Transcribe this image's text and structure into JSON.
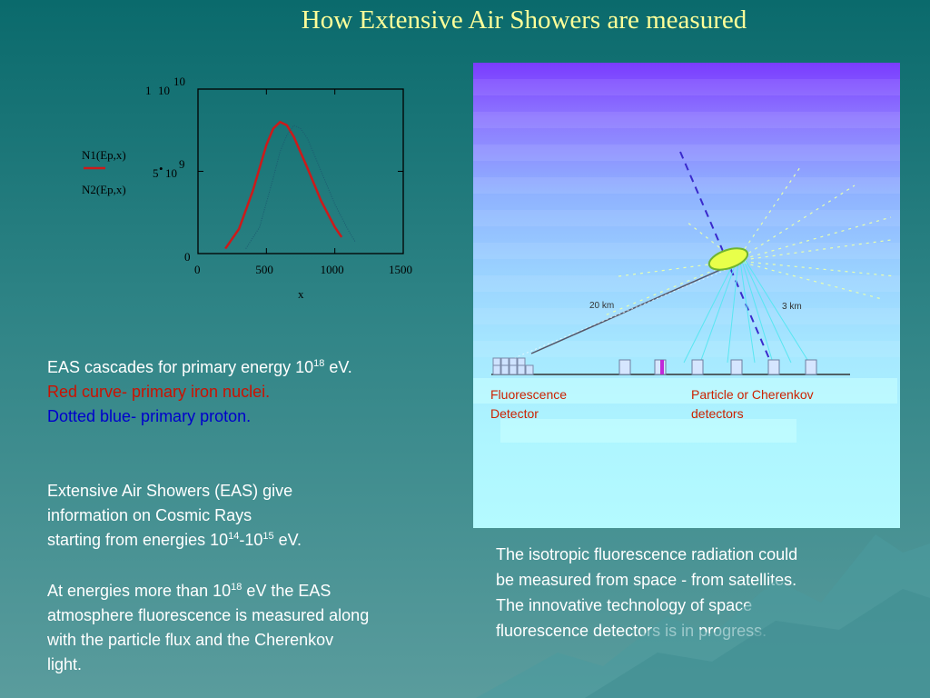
{
  "title": "How Extensive Air Showers are measured",
  "chart_data": {
    "type": "line",
    "xlabel": "x",
    "ylabel": "",
    "xlim": [
      0,
      1500
    ],
    "ylim": [
      0,
      10000000000.0
    ],
    "x_ticks": [
      "0",
      "500",
      "1000",
      "1500"
    ],
    "y_tick_top": {
      "mantissa": "1",
      "base": "10",
      "exp": "10"
    },
    "y_tick_mid": {
      "mantissa": "5",
      "base": "10",
      "exp": "9"
    },
    "y_tick_zero": "0",
    "legend": [
      "N1(Ep,x)",
      "N2(Ep,x)"
    ],
    "series": [
      {
        "name": "N1(Ep,x)",
        "color": "#cc1a1a",
        "style": "solid",
        "x": [
          200,
          300,
          400,
          500,
          550,
          600,
          650,
          700,
          800,
          900,
          1000,
          1050
        ],
        "y": [
          300000000.0,
          1500000000.0,
          3800000000.0,
          6600000000.0,
          7600000000.0,
          8000000000.0,
          7800000000.0,
          7100000000.0,
          5200000000.0,
          3200000000.0,
          1600000000.0,
          1000000000.0
        ]
      },
      {
        "name": "N2(Ep,x)",
        "color": "#1c5a70",
        "style": "dotted",
        "x": [
          350,
          450,
          550,
          600,
          650,
          700,
          750,
          800,
          900,
          1000,
          1100,
          1150
        ],
        "y": [
          300000000.0,
          1600000000.0,
          4600000000.0,
          6200000000.0,
          7200000000.0,
          7800000000.0,
          7600000000.0,
          7000000000.0,
          5000000000.0,
          3000000000.0,
          1400000000.0,
          700000000.0
        ]
      }
    ]
  },
  "left_text": {
    "p1_a": "EAS cascades for primary energy 10",
    "p1_sup": "18",
    "p1_b": " eV.",
    "p1_red": "Red curve- primary iron nuclei.",
    "p1_blue": "Dotted blue- primary proton.",
    "p2_l1": "Extensive Air Showers (EAS) give",
    "p2_l2": "information on Cosmic Rays",
    "p2_l3a": "starting from energies 10",
    "p2_sup1": "14",
    "p2_l3b": "-10",
    "p2_sup2": "15",
    "p2_l3c": " eV.",
    "p3_l1a": "At energies more than 10",
    "p3_sup": "18",
    "p3_l1b": " eV the EAS",
    "p3_l2": "atmosphere fluorescence is measured along",
    "p3_l3": "with the particle flux and the Cherenkov",
    "p3_l4": "light."
  },
  "diagram": {
    "distance_left": "20 km",
    "distance_right": "3 km",
    "label_fluorescence_1": "Fluorescence",
    "label_fluorescence_2": "Detector",
    "label_particle_1": "Particle or Cherenkov",
    "label_particle_2": "detectors"
  },
  "right_text": {
    "l1": "The isotropic fluorescence radiation could",
    "l2": "be measured from space - from satellites.",
    "l3": "The innovative technology of space",
    "l4": "fluorescence detectors is in progress."
  }
}
